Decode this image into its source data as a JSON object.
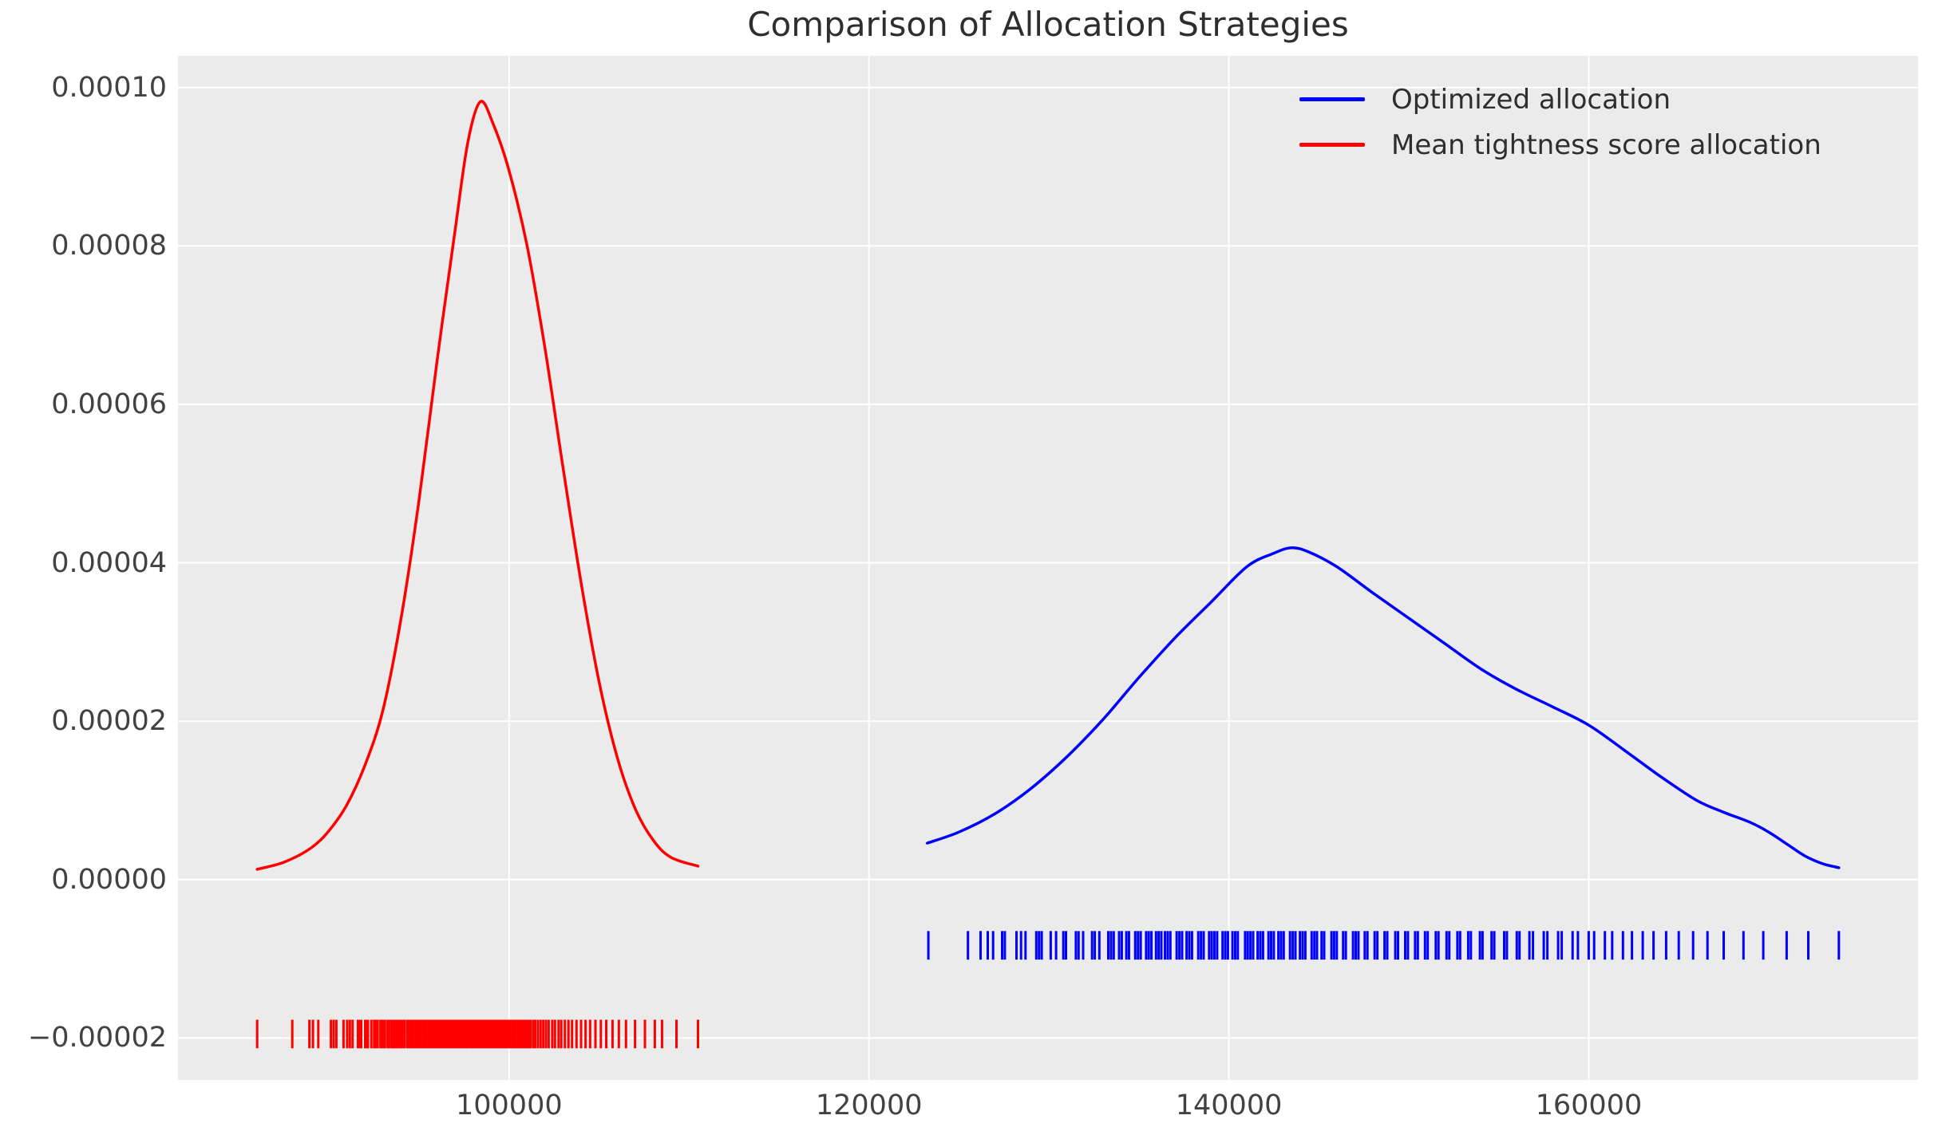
{
  "title": "Comparison of Allocation Strategies",
  "colors": {
    "optimized": "#0000ff",
    "mean_tightness": "#ff0000",
    "axes_background": "#ebebeb",
    "grid": "#ffffff",
    "text": "#2e2e2e",
    "tick_text": "#424242"
  },
  "chart_data": {
    "type": "line",
    "subtype": "kde-with-rug",
    "title": "Comparison of Allocation Strategies",
    "xlabel": "",
    "ylabel": "",
    "grid": true,
    "legend_position": "upper right",
    "xlim": [
      81600,
      178300
    ],
    "ylim": [
      -2.53e-05,
      0.000104
    ],
    "x_ticks": [
      {
        "value": 100000,
        "label": "100000"
      },
      {
        "value": 120000,
        "label": "120000"
      },
      {
        "value": 140000,
        "label": "140000"
      },
      {
        "value": 160000,
        "label": "160000"
      }
    ],
    "y_ticks": [
      {
        "value": -2e-05,
        "label": "−0.00002"
      },
      {
        "value": 0.0,
        "label": "0.00000"
      },
      {
        "value": 2e-05,
        "label": "0.00002"
      },
      {
        "value": 4e-05,
        "label": "0.00004"
      },
      {
        "value": 6e-05,
        "label": "0.00006"
      },
      {
        "value": 8e-05,
        "label": "0.00008"
      },
      {
        "value": 0.0001,
        "label": "0.00010"
      }
    ],
    "series": [
      {
        "name": "Optimized allocation",
        "color": "#0000ff",
        "peak": {
          "x": 143500,
          "density": 4.19e-05
        },
        "curve": {
          "x": [
            123240,
            125000,
            127000,
            129000,
            131000,
            133000,
            135000,
            137000,
            139000,
            141000,
            142500,
            143500,
            144500,
            146000,
            148000,
            150000,
            152000,
            154000,
            156000,
            158000,
            160000,
            162000,
            164000,
            166000,
            167500,
            169000,
            170000,
            171000,
            172000,
            173000,
            173900
          ],
          "density": [
            4.6e-06,
            6e-06,
            8.3e-06,
            1.15e-05,
            1.55e-05,
            2.02e-05,
            2.55e-05,
            3.05e-05,
            3.5e-05,
            3.95e-05,
            4.12e-05,
            4.19e-05,
            4.13e-05,
            3.95e-05,
            3.62e-05,
            3.3e-05,
            2.98e-05,
            2.66e-05,
            2.4e-05,
            2.18e-05,
            1.95e-05,
            1.63e-05,
            1.3e-05,
            1e-05,
            8.5e-06,
            7.2e-06,
            6e-06,
            4.5e-06,
            3e-06,
            2e-06,
            1.5e-06
          ]
        },
        "rug": {
          "y_center": -8.3e-06,
          "half_height": 1.8e-06,
          "x": [
            123300,
            125500,
            126200,
            126600,
            126900,
            127400,
            127550,
            128200,
            128450,
            128700,
            129300,
            129450,
            129600,
            130100,
            130400,
            130800,
            130950,
            131500,
            131650,
            131900,
            132400,
            132550,
            132800,
            133300,
            133450,
            133600,
            133900,
            134050,
            134300,
            134450,
            134800,
            134950,
            135100,
            135400,
            135550,
            135700,
            135950,
            136100,
            136250,
            136450,
            136600,
            136750,
            137100,
            137250,
            137400,
            137650,
            137800,
            137950,
            138300,
            138450,
            138600,
            138900,
            139050,
            139200,
            139350,
            139650,
            139800,
            139950,
            140200,
            140350,
            140500,
            140900,
            141050,
            141200,
            141350,
            141600,
            141750,
            141900,
            142200,
            142350,
            142500,
            142750,
            142900,
            143050,
            143400,
            143550,
            143700,
            143950,
            144100,
            144250,
            144600,
            144750,
            144900,
            145150,
            145300,
            145700,
            145850,
            146000,
            146350,
            146500,
            146900,
            147050,
            147200,
            147550,
            147700,
            148100,
            148250,
            148650,
            148800,
            149250,
            149400,
            149800,
            149950,
            150350,
            150500,
            150900,
            151050,
            151500,
            151650,
            152100,
            152250,
            152700,
            152850,
            153300,
            153450,
            153950,
            154100,
            154600,
            154750,
            155300,
            155450,
            156000,
            156150,
            156700,
            156900,
            157500,
            157700,
            158300,
            158500,
            159100,
            159400,
            160000,
            160300,
            160900,
            161300,
            161900,
            162400,
            163000,
            163600,
            164300,
            165000,
            165800,
            166600,
            167500,
            168600,
            169700,
            171000,
            172200,
            173900
          ]
        }
      },
      {
        "name": "Mean tightness score allocation",
        "color": "#ff0000",
        "peak": {
          "x": 98400,
          "density": 9.82e-05
        },
        "curve": {
          "x": [
            86000,
            87500,
            89000,
            90000,
            91000,
            92000,
            93000,
            94000,
            95000,
            96000,
            97000,
            97700,
            98400,
            99100,
            100000,
            101000,
            102000,
            103000,
            104000,
            105000,
            106000,
            107000,
            108000,
            109000,
            110500
          ],
          "density": [
            1.3e-06,
            2.2e-06,
            4e-06,
            6.2e-06,
            9.5e-06,
            1.45e-05,
            2.15e-05,
            3.3e-05,
            4.8e-05,
            6.55e-05,
            8.2e-05,
            9.3e-05,
            9.82e-05,
            9.55e-05,
            8.95e-05,
            8e-05,
            6.7e-05,
            5.2e-05,
            3.75e-05,
            2.5e-05,
            1.55e-05,
            9e-06,
            5e-06,
            2.8e-06,
            1.7e-06
          ]
        },
        "rug": {
          "y_center": -1.95e-05,
          "half_height": 1.8e-06,
          "x": [
            86000,
            87950,
            88900,
            89100,
            89400,
            90100,
            90250,
            90400,
            90800,
            91000,
            91150,
            91300,
            91600,
            91700,
            91780,
            92000,
            92080,
            92160,
            92350,
            92500,
            92580,
            92700,
            92850,
            92930,
            93000,
            93100,
            93250,
            93320,
            93450,
            93520,
            93600,
            93700,
            93780,
            93900,
            94000,
            94080,
            94200,
            94350,
            94420,
            94500,
            94600,
            94680,
            94800,
            94900,
            95000,
            95080,
            95200,
            95300,
            95380,
            95500,
            95600,
            95680,
            95800,
            95900,
            96000,
            96080,
            96200,
            96300,
            96380,
            96500,
            96600,
            96680,
            96800,
            96900,
            97000,
            97080,
            97200,
            97300,
            97380,
            97500,
            97600,
            97680,
            97800,
            97900,
            98000,
            98080,
            98200,
            98300,
            98380,
            98500,
            98600,
            98680,
            98800,
            98900,
            99000,
            99080,
            99200,
            99300,
            99380,
            99500,
            99600,
            99680,
            99800,
            99900,
            100000,
            100080,
            100200,
            100300,
            100380,
            100500,
            100600,
            100680,
            100800,
            100900,
            101000,
            101100,
            101200,
            101350,
            101450,
            101600,
            101750,
            101900,
            102050,
            102200,
            102400,
            102550,
            102750,
            102900,
            103100,
            103300,
            103500,
            103750,
            104000,
            104250,
            104500,
            104800,
            105100,
            105400,
            105750,
            106100,
            106500,
            107000,
            107550,
            108100,
            108500,
            109300,
            110500
          ]
        }
      }
    ]
  },
  "legend": {
    "entries": [
      {
        "label": "Optimized allocation",
        "color": "#0000ff"
      },
      {
        "label": "Mean tightness score allocation",
        "color": "#ff0000"
      }
    ]
  }
}
